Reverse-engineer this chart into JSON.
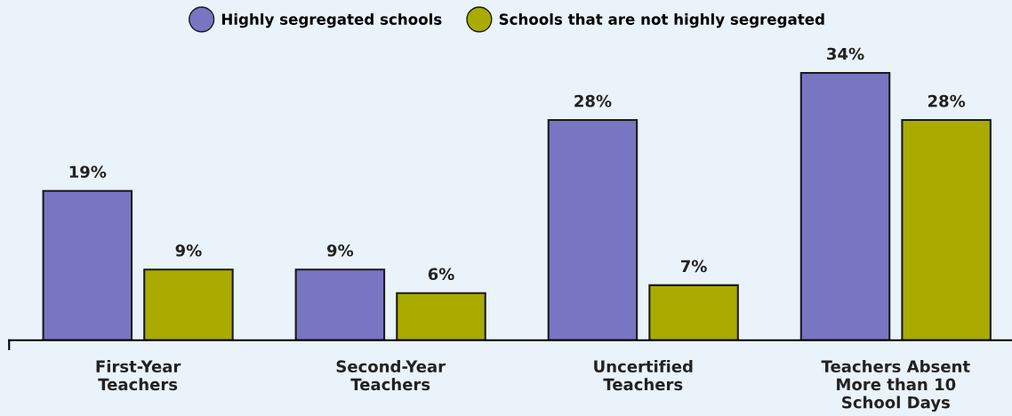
{
  "chart_data": {
    "type": "bar",
    "categories": [
      "First-Year\nTeachers",
      "Second-Year\nTeachers",
      "Uncertified\nTeachers",
      "Teachers Absent\nMore than 10\nSchool Days"
    ],
    "series": [
      {
        "name": "Highly segregated schools",
        "color": "#7875c2",
        "values": [
          19,
          9,
          28,
          34
        ],
        "value_labels": [
          "19%",
          "9%",
          "28%",
          "34%"
        ]
      },
      {
        "name": "Schools that are not highly segregated",
        "color": "#aaab00",
        "values": [
          9,
          6,
          7,
          28
        ],
        "value_labels": [
          "9%",
          "6%",
          "7%",
          "28%"
        ]
      }
    ],
    "tick_labels": "x",
    "legend": "top"
  }
}
